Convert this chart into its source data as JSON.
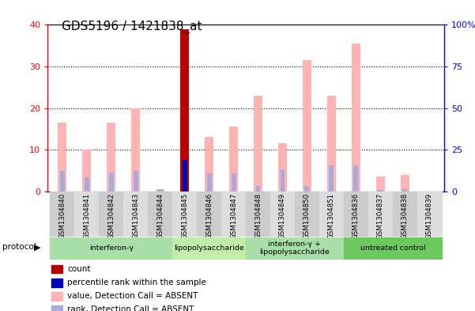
{
  "title": "GDS5196 / 1421838_at",
  "samples": [
    "GSM1304840",
    "GSM1304841",
    "GSM1304842",
    "GSM1304843",
    "GSM1304844",
    "GSM1304845",
    "GSM1304846",
    "GSM1304847",
    "GSM1304848",
    "GSM1304849",
    "GSM1304850",
    "GSM1304851",
    "GSM1304836",
    "GSM1304837",
    "GSM1304838",
    "GSM1304839"
  ],
  "pink_values_all": [
    16.5,
    10.0,
    16.5,
    20.0,
    0.5,
    39.0,
    13.0,
    15.5,
    23.0,
    11.5,
    31.5,
    23.0,
    35.5,
    3.5,
    4.0,
    0.0
  ],
  "blue_rank_all": [
    12.0,
    8.5,
    11.5,
    12.0,
    1.5,
    19.0,
    11.0,
    11.0,
    3.0,
    13.0,
    3.0,
    15.5,
    15.5,
    1.0,
    1.5,
    0.0
  ],
  "count_value": 39.0,
  "count_index": 5,
  "percentile_rank_value": 19.0,
  "percentile_rank_index": 5,
  "groups": [
    {
      "label": "interferon-γ",
      "start": 0,
      "end": 5,
      "color": "#b0e8a0"
    },
    {
      "label": "lipopolysaccharide",
      "start": 5,
      "end": 8,
      "color": "#c8f0b0"
    },
    {
      "label": "interferon-γ +\nlipopolysaccharide",
      "start": 8,
      "end": 12,
      "color": "#b0e8a0"
    },
    {
      "label": "untreated control",
      "start": 12,
      "end": 16,
      "color": "#78d060"
    }
  ],
  "left_ylim": [
    0,
    40
  ],
  "right_ylim": [
    0,
    100
  ],
  "left_yticks": [
    0,
    10,
    20,
    30,
    40
  ],
  "right_yticks": [
    0,
    25,
    50,
    75,
    100
  ],
  "left_yticklabels": [
    "0",
    "10",
    "20",
    "30",
    "40"
  ],
  "right_yticklabels": [
    "0",
    "25",
    "50",
    "75",
    "100%"
  ],
  "bar_width": 0.35,
  "pink_color": "#ffb3b3",
  "blue_color": "#aaaadd",
  "red_color": "#bb0000",
  "dark_blue_color": "#0000bb",
  "legend_items": [
    {
      "color": "#bb0000",
      "label": "count"
    },
    {
      "color": "#0000bb",
      "label": "percentile rank within the sample"
    },
    {
      "color": "#ffb3b3",
      "label": "value, Detection Call = ABSENT"
    },
    {
      "color": "#aaaadd",
      "label": "rank, Detection Call = ABSENT"
    }
  ]
}
